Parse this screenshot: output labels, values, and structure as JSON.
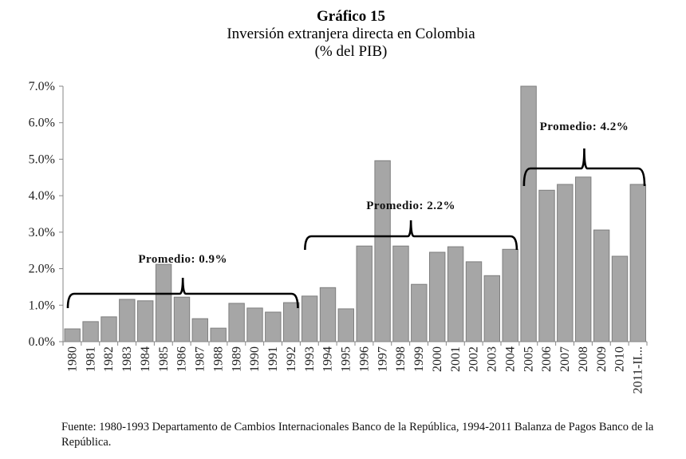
{
  "header": {
    "title": "Gráfico 15",
    "subtitle": "Inversión extranjera directa en Colombia",
    "unit_label": "(% del PIB)"
  },
  "source_note": "Fuente: 1980-1993 Departamento de Cambios Internacionales Banco de la República, 1994-2011 Balanza de Pagos Banco de la República.",
  "chart_data": {
    "type": "bar",
    "title": "Gráfico 15 — Inversión extranjera directa en Colombia",
    "subtitle": "(% del PIB)",
    "xlabel": "",
    "ylabel": "% del PIB",
    "ylim": [
      0,
      7
    ],
    "yticks": [
      0,
      1,
      2,
      3,
      4,
      5,
      6,
      7
    ],
    "ytick_labels": [
      "0.0%",
      "1.0%",
      "2.0%",
      "3.0%",
      "4.0%",
      "5.0%",
      "6.0%",
      "7.0%"
    ],
    "grid": false,
    "legend": "none",
    "bar_color": "#a6a6a6",
    "bar_edge_color": "#7f7f7f",
    "categories": [
      "1980",
      "1981",
      "1982",
      "1983",
      "1984",
      "1985",
      "1986",
      "1987",
      "1988",
      "1989",
      "1990",
      "1991",
      "1992",
      "1993",
      "1994",
      "1995",
      "1996",
      "1997",
      "1998",
      "1999",
      "2000",
      "2001",
      "2002",
      "2003",
      "2004",
      "2005",
      "2006",
      "2007",
      "2008",
      "2009",
      "2010",
      "2011-II..."
    ],
    "values": [
      0.35,
      0.55,
      0.68,
      1.16,
      1.12,
      2.12,
      1.22,
      0.63,
      0.37,
      1.05,
      0.92,
      0.81,
      1.07,
      1.25,
      1.48,
      0.9,
      2.62,
      4.96,
      2.62,
      1.57,
      2.45,
      2.6,
      2.19,
      1.81,
      2.53,
      7.0,
      4.15,
      4.31,
      4.51,
      3.06,
      2.34,
      4.31
    ],
    "annotations": [
      {
        "label": "Promedio: 0.9%",
        "period_start": "1980",
        "period_end": "1992",
        "average": 0.9
      },
      {
        "label": "Promedio: 2.2%",
        "period_start": "1993",
        "period_end": "2004",
        "average": 2.2
      },
      {
        "label": "Promedio: 4.2%",
        "period_start": "2005",
        "period_end": "2011-II...",
        "average": 4.2
      }
    ]
  }
}
